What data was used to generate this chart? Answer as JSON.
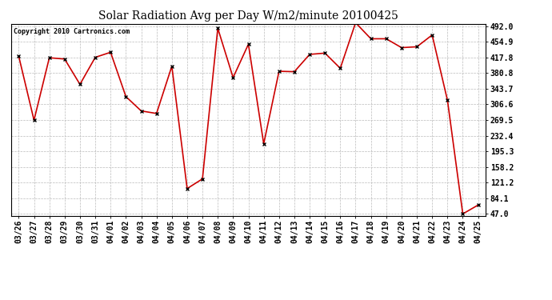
{
  "title": "Solar Radiation Avg per Day W/m2/minute 20100425",
  "copyright": "Copyright 2010 Cartronics.com",
  "dates": [
    "03/26",
    "03/27",
    "03/28",
    "03/29",
    "03/30",
    "03/31",
    "04/01",
    "04/02",
    "04/03",
    "04/04",
    "04/05",
    "04/06",
    "04/07",
    "04/08",
    "04/09",
    "04/10",
    "04/11",
    "04/12",
    "04/13",
    "04/14",
    "04/15",
    "04/16",
    "04/17",
    "04/18",
    "04/19",
    "04/20",
    "04/21",
    "04/22",
    "04/23",
    "04/24",
    "04/25"
  ],
  "values": [
    421,
    269,
    417,
    414,
    354,
    418,
    430,
    325,
    291,
    285,
    397,
    107,
    130,
    487,
    370,
    449,
    213,
    385,
    384,
    425,
    428,
    392,
    500,
    462,
    462,
    441,
    443,
    471,
    316,
    47,
    68
  ],
  "line_color": "#cc0000",
  "marker": "x",
  "marker_color": "#000000",
  "bg_color": "#ffffff",
  "grid_color": "#bbbbbb",
  "yticks": [
    47.0,
    84.1,
    121.2,
    158.2,
    195.3,
    232.4,
    269.5,
    306.6,
    343.7,
    380.8,
    417.8,
    454.9,
    492.0
  ],
  "ymin": 47.0,
  "ymax": 492.0,
  "title_fontsize": 10,
  "tick_fontsize": 7,
  "copyright_fontsize": 6
}
